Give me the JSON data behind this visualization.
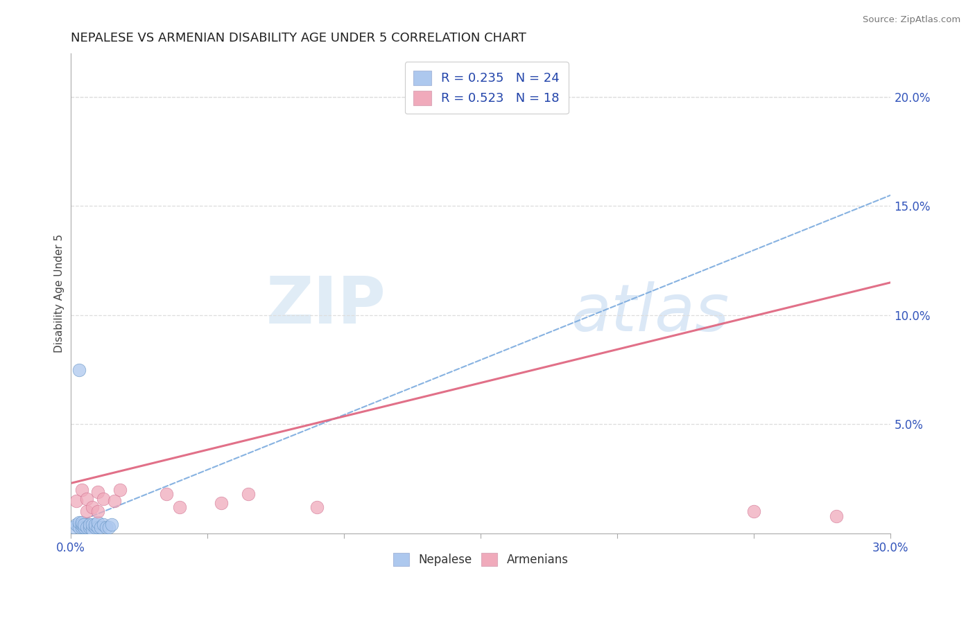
{
  "title": "NEPALESE VS ARMENIAN DISABILITY AGE UNDER 5 CORRELATION CHART",
  "source": "Source: ZipAtlas.com",
  "ylabel": "Disability Age Under 5",
  "xlim": [
    0.0,
    0.3
  ],
  "ylim": [
    0.0,
    0.22
  ],
  "xtick_positions": [
    0.0,
    0.05,
    0.1,
    0.15,
    0.2,
    0.25,
    0.3
  ],
  "xtick_labels": [
    "0.0%",
    "",
    "",
    "",
    "",
    "",
    "30.0%"
  ],
  "ytick_positions": [
    0.0,
    0.05,
    0.1,
    0.15,
    0.2
  ],
  "ytick_labels": [
    "",
    "5.0%",
    "10.0%",
    "15.0%",
    "20.0%"
  ],
  "nepalese_R": 0.235,
  "nepalese_N": 24,
  "armenian_R": 0.523,
  "armenian_N": 18,
  "nepalese_color": "#adc8ee",
  "armenian_color": "#f0aabb",
  "nepalese_edge_color": "#6090c0",
  "armenian_edge_color": "#d07090",
  "nepalese_line_color": "#7aaade",
  "armenian_line_color": "#e06882",
  "background_color": "#ffffff",
  "watermark_zip_color": "#c0d8f0",
  "watermark_atlas_color": "#a8c8e8",
  "grid_color": "#dddddd",
  "title_color": "#222222",
  "axis_label_color": "#444444",
  "tick_color": "#3355bb",
  "legend_text_color": "#2244aa",
  "nepalese_x": [
    0.001,
    0.002,
    0.003,
    0.003,
    0.004,
    0.004,
    0.004,
    0.005,
    0.005,
    0.006,
    0.007,
    0.007,
    0.008,
    0.008,
    0.009,
    0.009,
    0.01,
    0.01,
    0.011,
    0.012,
    0.013,
    0.014,
    0.015,
    0.003
  ],
  "nepalese_y": [
    0.003,
    0.004,
    0.003,
    0.005,
    0.003,
    0.004,
    0.005,
    0.003,
    0.004,
    0.003,
    0.003,
    0.004,
    0.002,
    0.004,
    0.003,
    0.004,
    0.003,
    0.005,
    0.003,
    0.004,
    0.003,
    0.003,
    0.004,
    0.075
  ],
  "armenian_x": [
    0.002,
    0.004,
    0.006,
    0.006,
    0.008,
    0.01,
    0.01,
    0.012,
    0.016,
    0.018,
    0.035,
    0.04,
    0.055,
    0.065,
    0.09,
    0.175,
    0.25,
    0.28
  ],
  "armenian_y": [
    0.015,
    0.02,
    0.01,
    0.016,
    0.012,
    0.01,
    0.019,
    0.016,
    0.015,
    0.02,
    0.018,
    0.012,
    0.014,
    0.018,
    0.012,
    0.21,
    0.01,
    0.008
  ],
  "nepalese_trendline_x0": 0.0,
  "nepalese_trendline_y0": 0.004,
  "nepalese_trendline_x1": 0.3,
  "nepalese_trendline_y1": 0.155,
  "armenian_trendline_x0": 0.0,
  "armenian_trendline_y0": 0.023,
  "armenian_trendline_x1": 0.3,
  "armenian_trendline_y1": 0.115
}
